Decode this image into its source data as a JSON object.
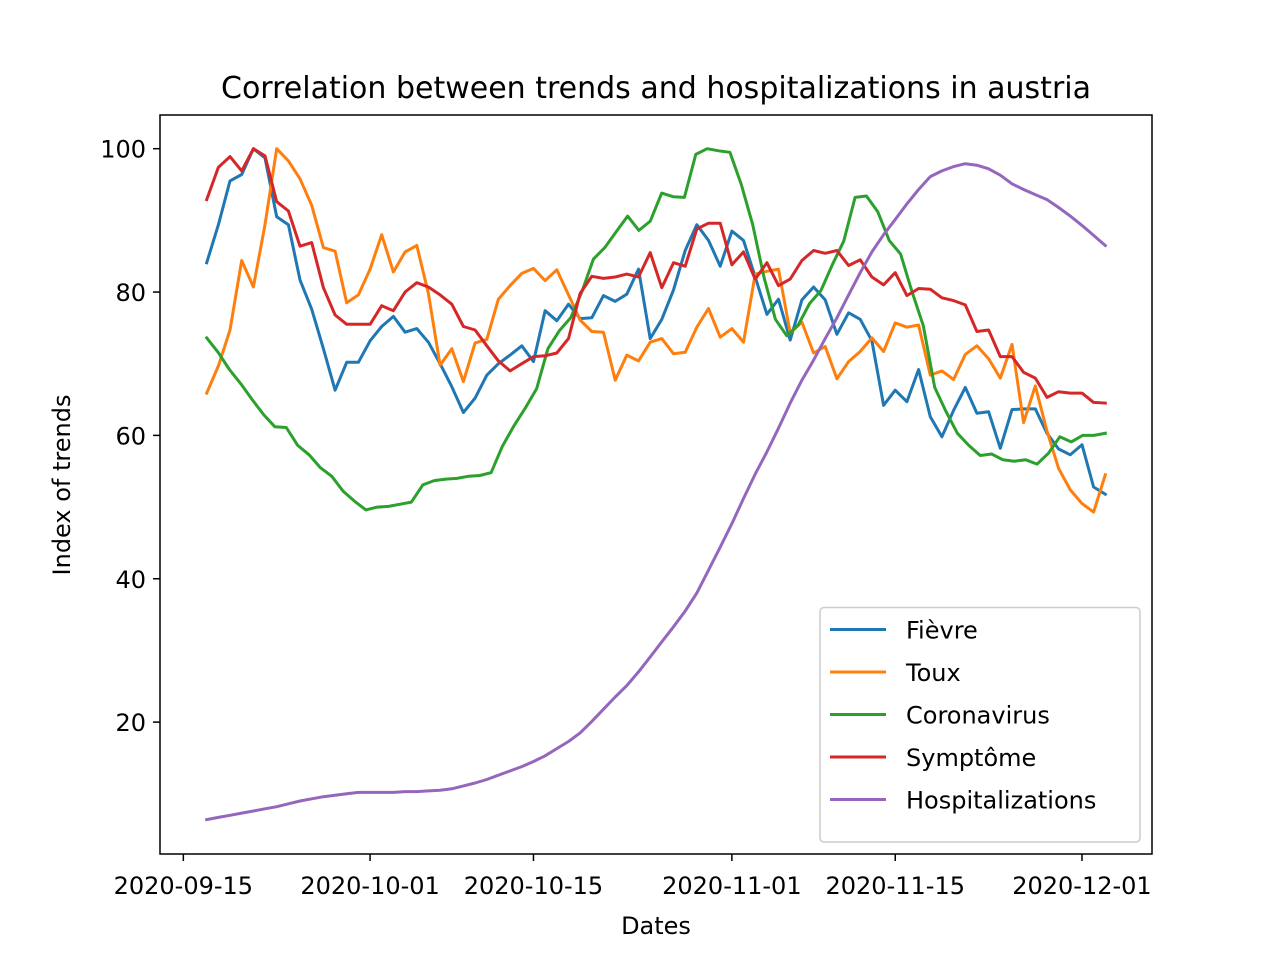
{
  "chart_data": {
    "type": "line",
    "title": "Correlation between trends and hospitalizations in austria",
    "xlabel": "Dates",
    "ylabel": "Index of trends",
    "x_start": "2020-09-17",
    "x_end": "2020-12-03",
    "xlim": [
      "2020-09-13",
      "2020-12-07"
    ],
    "ylim": [
      1.6,
      104.7
    ],
    "x_ticks": [
      "2020-09-15",
      "2020-10-01",
      "2020-10-15",
      "2020-11-01",
      "2020-11-15",
      "2020-12-01"
    ],
    "y_ticks": [
      20,
      40,
      60,
      80,
      100
    ],
    "grid": false,
    "legend_position": "lower-right",
    "series": [
      {
        "name": "Fièvre",
        "color": "#1f77b4",
        "values": [
          84.1,
          89.4,
          95.5,
          96.4,
          100,
          98.7,
          90.5,
          89.4,
          81.7,
          77.6,
          72.1,
          66.3,
          70.2,
          70.2,
          73.2,
          75.2,
          76.6,
          74.4,
          74.9,
          73,
          70,
          66.8,
          63.2,
          65.2,
          68.4,
          70,
          71.2,
          72.5,
          70.3,
          77.4,
          76,
          78.3,
          76.3,
          76.4,
          79.5,
          78.7,
          79.7,
          83.2,
          73.5,
          76.2,
          80.3,
          85.8,
          89.4,
          87.2,
          83.6,
          88.5,
          87.2,
          82.1,
          76.9,
          79,
          73.3,
          78.9,
          80.7,
          78.9,
          74.1,
          77.1,
          76.2,
          73.2,
          64.2,
          66.3,
          64.7,
          69.2,
          62.6,
          59.8,
          63.5,
          66.7,
          63.1,
          63.3,
          58.2,
          63.6,
          63.7,
          63.7,
          60.3,
          58.1,
          57.3,
          58.7,
          52.8,
          51.8
        ]
      },
      {
        "name": "Toux",
        "color": "#ff7f0e",
        "values": [
          65.9,
          69.7,
          74.7,
          84.4,
          80.7,
          89.4,
          100,
          98.3,
          95.8,
          92.1,
          86.2,
          85.7,
          78.5,
          79.6,
          83.2,
          88,
          82.8,
          85.6,
          86.5,
          79.8,
          69.8,
          72.1,
          67.5,
          72.9,
          73.4,
          79,
          80.9,
          82.6,
          83.3,
          81.6,
          83.1,
          79.6,
          76.1,
          74.5,
          74.4,
          67.7,
          71.2,
          70.4,
          73,
          73.5,
          71.4,
          71.6,
          75.1,
          77.7,
          73.7,
          74.9,
          73,
          82.5,
          82.9,
          83.2,
          74.3,
          75.8,
          71.5,
          72.4,
          67.9,
          70.3,
          71.7,
          73.6,
          71.7,
          75.7,
          75.1,
          75.4,
          68.4,
          69,
          67.8,
          71.3,
          72.5,
          70.7,
          68,
          72.7,
          61.8,
          66.9,
          60.6,
          55.4,
          52.4,
          50.5,
          49.3,
          54.5
        ]
      },
      {
        "name": "Coronavirus",
        "color": "#2ca02c",
        "values": [
          73.6,
          71.6,
          69.2,
          67.2,
          65,
          62.9,
          61.2,
          61.1,
          58.6,
          57.3,
          55.5,
          54.3,
          52.2,
          50.8,
          49.6,
          50,
          50.1,
          50.4,
          50.7,
          53.1,
          53.7,
          53.9,
          54,
          54.3,
          54.4,
          54.8,
          58.5,
          61.3,
          63.8,
          66.5,
          72.1,
          74.6,
          76.4,
          80.1,
          84.6,
          86.2,
          88.4,
          90.6,
          88.6,
          89.9,
          93.8,
          93.3,
          93.2,
          99.2,
          100,
          99.7,
          99.5,
          95,
          89.4,
          82,
          76.2,
          73.9,
          75.4,
          78.4,
          80.2,
          83.8,
          87.1,
          93.2,
          93.4,
          91.2,
          87.2,
          85.3,
          80.1,
          75.3,
          66.7,
          63.3,
          60.3,
          58.6,
          57.2,
          57.4,
          56.6,
          56.4,
          56.6,
          56,
          57.5,
          59.8,
          59.1,
          60,
          60,
          60.3
        ]
      },
      {
        "name": "Symptôme",
        "color": "#d62728",
        "values": [
          92.9,
          97.4,
          98.9,
          96.9,
          100,
          99,
          92.6,
          91.3,
          86.4,
          86.9,
          80.6,
          76.8,
          75.5,
          75.5,
          75.5,
          78.1,
          77.4,
          80,
          81.3,
          80.7,
          79.6,
          78.3,
          75.2,
          74.7,
          72.5,
          70.4,
          69,
          70,
          71,
          71.1,
          71.5,
          73.5,
          79.8,
          82.2,
          81.9,
          82.1,
          82.5,
          82.1,
          85.5,
          80.6,
          84.1,
          83.6,
          88.8,
          89.6,
          89.6,
          83.8,
          85.6,
          81.8,
          84.1,
          80.9,
          81.8,
          84.4,
          85.8,
          85.4,
          85.8,
          83.7,
          84.5,
          82.1,
          81,
          82.7,
          79.5,
          80.5,
          80.4,
          79.2,
          78.8,
          78.2,
          74.5,
          74.7,
          71,
          71,
          68.8,
          68,
          65.3,
          66.1,
          65.9,
          65.9,
          64.6,
          64.5
        ]
      },
      {
        "name": "Hospitalizations",
        "color": "#9467bd",
        "values": [
          6.4,
          6.7,
          7,
          7.3,
          7.6,
          7.9,
          8.2,
          8.6,
          9,
          9.3,
          9.6,
          9.8,
          10,
          10.2,
          10.2,
          10.2,
          10.2,
          10.3,
          10.3,
          10.4,
          10.5,
          10.7,
          11.1,
          11.5,
          12,
          12.6,
          13.2,
          13.8,
          14.5,
          15.3,
          16.3,
          17.3,
          18.5,
          20.1,
          21.8,
          23.5,
          25.1,
          27,
          29.1,
          31.2,
          33.3,
          35.5,
          38,
          41.2,
          44.4,
          47.7,
          51.2,
          54.6,
          57.7,
          61,
          64.5,
          67.7,
          70.5,
          73.5,
          76.4,
          79.6,
          82.7,
          85.6,
          88,
          90.1,
          92.3,
          94.3,
          96.1,
          96.9,
          97.5,
          97.9,
          97.7,
          97.2,
          96.3,
          95.1,
          94.3,
          93.6,
          92.9,
          91.8,
          90.6,
          89.3,
          87.9,
          86.5
        ]
      }
    ]
  }
}
